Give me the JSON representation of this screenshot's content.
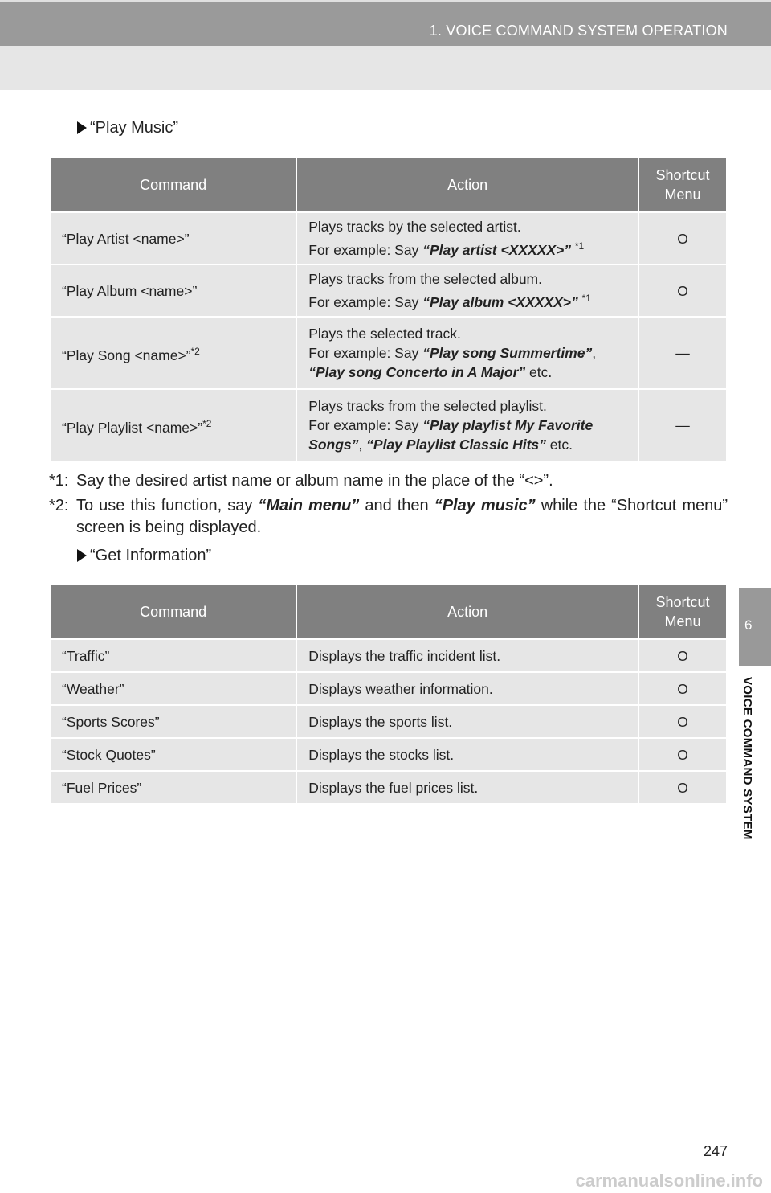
{
  "header": {
    "title": "1. VOICE COMMAND SYSTEM OPERATION"
  },
  "section1": {
    "title": "“Play Music”",
    "columns": [
      "Command",
      "Action",
      "Shortcut Menu"
    ],
    "rows": [
      {
        "command": "“Play Artist <name>”",
        "cmd_sup": "",
        "action_line1": "Plays tracks by the selected artist.",
        "example_prefix": "For example: Say ",
        "example": "“Play artist <XXXXX>”",
        "example_sup": "*1",
        "example2": "",
        "suffix": "",
        "shortcut": "O"
      },
      {
        "command": "“Play Album <name>”",
        "cmd_sup": "",
        "action_line1": "Plays tracks from the selected album.",
        "example_prefix": "For example: Say ",
        "example": "“Play album <XXXXX>”",
        "example_sup": "*1",
        "example2": "",
        "suffix": "",
        "shortcut": "O"
      },
      {
        "command": "“Play Song <name>”",
        "cmd_sup": "*2",
        "action_line1": "Plays the selected track.",
        "example_prefix": "For example: Say ",
        "example": "“Play song Summertime”",
        "example_sup": "",
        ",": ",",
        "example2": "“Play song Concerto in A Major”",
        "suffix": " etc.",
        "shortcut": "—"
      },
      {
        "command": "“Play Playlist <name>”",
        "cmd_sup": "*2",
        "action_line1": "Plays tracks from the selected playlist.",
        "example_prefix": "For example: Say ",
        "example": "“Play playlist My Favorite Songs”",
        "example_sup": "",
        "example2": "“Play Playlist Classic Hits”",
        "suffix": " etc.",
        "shortcut": "—"
      }
    ]
  },
  "notes": [
    {
      "mark": "*1:",
      "text": "Say the desired artist name or album name in the place of the “<>”."
    },
    {
      "mark": "*2:",
      "pre": "To use this function, say ",
      "b1": "“Main menu”",
      "mid": " and then ",
      "b2": "“Play music”",
      "post": " while the “Shortcut menu” screen is being displayed."
    }
  ],
  "section2": {
    "title": "“Get Information”",
    "columns": [
      "Command",
      "Action",
      "Shortcut Menu"
    ],
    "rows": [
      {
        "command": "“Traffic”",
        "action": "Displays the traffic incident list.",
        "shortcut": "O"
      },
      {
        "command": "“Weather”",
        "action": "Displays weather information.",
        "shortcut": "O"
      },
      {
        "command": "“Sports Scores”",
        "action": "Displays the sports list.",
        "shortcut": "O"
      },
      {
        "command": "“Stock Quotes”",
        "action": "Displays the stocks list.",
        "shortcut": "O"
      },
      {
        "command": "“Fuel Prices”",
        "action": "Displays the fuel prices list.",
        "shortcut": "O"
      }
    ]
  },
  "side_tab": {
    "number": "6",
    "label": "VOICE COMMAND SYSTEM"
  },
  "page_number": "247",
  "watermark": "carmanualsonline.info",
  "colors": {
    "header_dark": "#9a9a9a",
    "header_light": "#e6e6e6",
    "table_header": "#808080",
    "table_row": "#e6e6e6"
  }
}
